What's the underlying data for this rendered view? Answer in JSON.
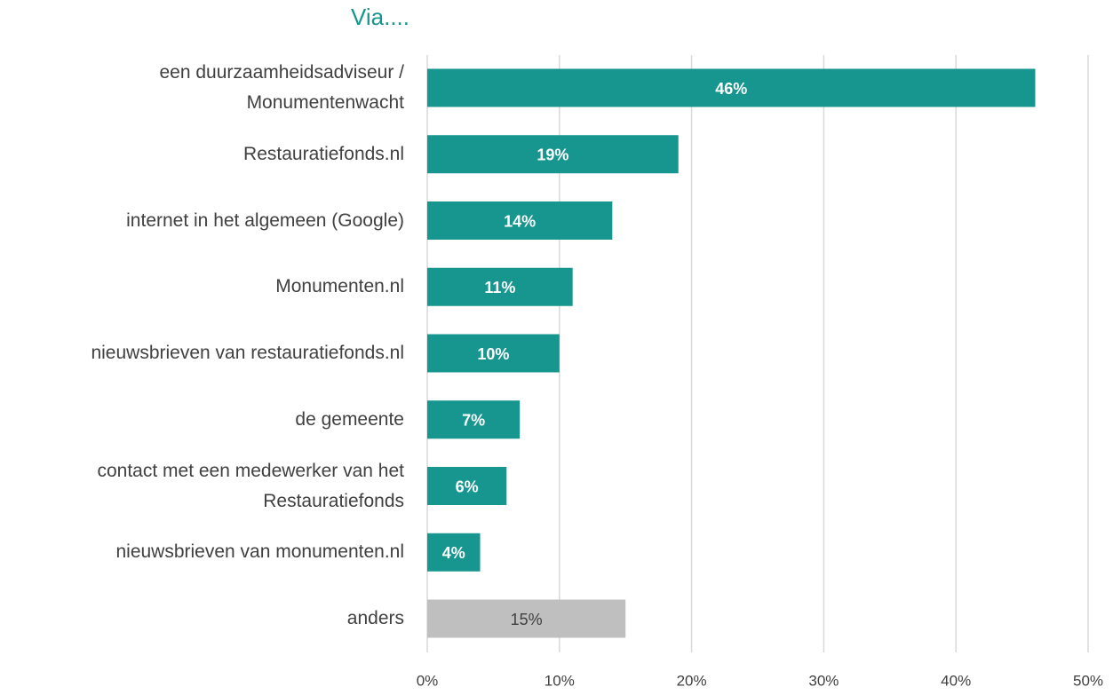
{
  "chart_data": {
    "type": "bar",
    "orientation": "horizontal",
    "title": "Via....",
    "categories": [
      "een duurzaamheidsadviseur / Monumentenwacht",
      "Restauratiefonds.nl",
      "internet in het algemeen (Google)",
      "Monumenten.nl",
      "nieuwsbrieven van restauratiefonds.nl",
      "de gemeente",
      "contact met een medewerker van het Restauratiefonds",
      "nieuwsbrieven van monumenten.nl",
      "anders"
    ],
    "values": [
      46,
      19,
      14,
      11,
      10,
      7,
      6,
      4,
      15
    ],
    "value_labels": [
      "46%",
      "19%",
      "14%",
      "11%",
      "10%",
      "7%",
      "6%",
      "4%",
      "15%"
    ],
    "colors": [
      "#17968f",
      "#17968f",
      "#17968f",
      "#17968f",
      "#17968f",
      "#17968f",
      "#17968f",
      "#17968f",
      "#bfbfbf"
    ],
    "xlim": [
      0,
      50
    ],
    "xticks": [
      {
        "value": 0,
        "label": "0%"
      },
      {
        "value": 10,
        "label": "10%"
      },
      {
        "value": 20,
        "label": "20%"
      },
      {
        "value": 30,
        "label": "30%"
      },
      {
        "value": 40,
        "label": "40%"
      },
      {
        "value": 50,
        "label": "50%"
      }
    ],
    "grid": true
  }
}
